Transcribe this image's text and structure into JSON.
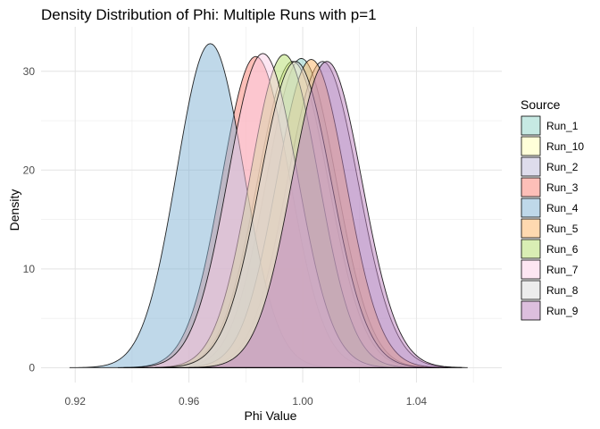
{
  "chart_data": {
    "type": "area",
    "subtype": "density",
    "title": "Density Distribution of Phi: Multiple Runs with p=1",
    "xlabel": "Phi Value",
    "ylabel": "Density",
    "xlim": [
      0.908,
      1.07
    ],
    "ylim": [
      -1.5,
      34.5
    ],
    "x_ticks": [
      0.92,
      0.96,
      1.0,
      1.04
    ],
    "x_tick_labels": [
      "0.92",
      "0.96",
      "1.00",
      "1.04"
    ],
    "y_ticks": [
      0,
      10,
      20,
      30
    ],
    "y_tick_labels": [
      "0",
      "10",
      "20",
      "30"
    ],
    "grid": true,
    "legend_title": "Source",
    "legend_position": "right",
    "series": [
      {
        "name": "Run_1",
        "mean": 0.9995,
        "sd": 0.0123,
        "peak": 31.3,
        "support": [
          0.951,
          1.048
        ],
        "color": "#8DD3C7"
      },
      {
        "name": "Run_10",
        "mean": 0.9965,
        "sd": 0.0125,
        "peak": 31.0,
        "support": [
          0.948,
          1.046
        ],
        "color": "#FFFFB3"
      },
      {
        "name": "Run_2",
        "mean": 1.007,
        "sd": 0.0125,
        "peak": 31.0,
        "support": [
          0.958,
          1.056
        ],
        "color": "#BEBADA"
      },
      {
        "name": "Run_3",
        "mean": 0.9835,
        "sd": 0.012,
        "peak": 31.5,
        "support": [
          0.935,
          1.032
        ],
        "color": "#FB8072"
      },
      {
        "name": "Run_4",
        "mean": 0.9675,
        "sd": 0.0118,
        "peak": 32.8,
        "support": [
          0.918,
          1.017
        ],
        "color": "#80B1D3"
      },
      {
        "name": "Run_5",
        "mean": 1.003,
        "sd": 0.0122,
        "peak": 31.2,
        "support": [
          0.955,
          1.051
        ],
        "color": "#FDB462"
      },
      {
        "name": "Run_6",
        "mean": 0.9935,
        "sd": 0.0121,
        "peak": 31.7,
        "support": [
          0.945,
          1.042
        ],
        "color": "#B3DE69"
      },
      {
        "name": "Run_7",
        "mean": 0.986,
        "sd": 0.0123,
        "peak": 31.8,
        "support": [
          0.937,
          1.035
        ],
        "color": "#FCCDE5"
      },
      {
        "name": "Run_8",
        "mean": 0.9975,
        "sd": 0.0126,
        "peak": 31.0,
        "support": [
          0.948,
          1.048
        ],
        "color": "#D9D9D9"
      },
      {
        "name": "Run_9",
        "mean": 1.0085,
        "sd": 0.0124,
        "peak": 31.0,
        "support": [
          0.96,
          1.058
        ],
        "color": "#BC80BD"
      }
    ]
  }
}
